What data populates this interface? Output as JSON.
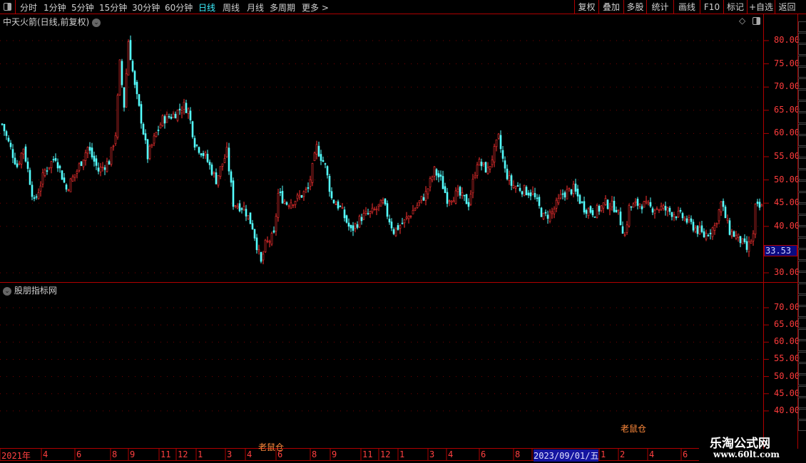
{
  "toolbar": {
    "periods": [
      "分时",
      "1分钟",
      "5分钟",
      "15分钟",
      "30分钟",
      "60分钟",
      "日线",
      "周线",
      "月线",
      "多周期",
      "更多 >"
    ],
    "active": "日线",
    "actions": [
      "复权",
      "叠加",
      "多股",
      "统计",
      "画线",
      "F10",
      "标记",
      "+自选",
      "返回"
    ]
  },
  "main_panel": {
    "title": "中天火箭(日线,前复权)",
    "current_price": "33.53"
  },
  "indicator_panel": {
    "title": "股朋指标网",
    "marks": [
      "老鼠仓",
      "老鼠仓"
    ]
  },
  "watermark": {
    "name": "乐淘公式网",
    "url": "www.60lt.com"
  },
  "colors": {
    "up": "#ff3232",
    "down": "#54ffff",
    "axis": "#ff3c3c",
    "border": "#b00000",
    "mark": "#ff8a3c",
    "highlight": "#1414a0"
  },
  "chart_data": [
    {
      "type": "candlestick",
      "title": "中天火箭(日线,前复权)",
      "y_ticks": [
        "80.00",
        "75.00",
        "70.00",
        "65.00",
        "60.00",
        "55.00",
        "50.00",
        "45.00",
        "40.00",
        "30.00"
      ],
      "ylim": [
        30,
        80
      ],
      "x_ticks": [
        "2021年",
        "4",
        "6",
        "8",
        "9",
        "11",
        "12",
        "1",
        "3",
        "4",
        "6",
        "8",
        "9",
        "11",
        "12",
        "1",
        "3",
        "4",
        "6",
        "8",
        "2023/09/01/五",
        "1",
        "2",
        "4",
        "6"
      ],
      "close_path_bar_price": [
        [
          0,
          62
        ],
        [
          3,
          58
        ],
        [
          7,
          53
        ],
        [
          10,
          57
        ],
        [
          15,
          45
        ],
        [
          20,
          52
        ],
        [
          25,
          55
        ],
        [
          30,
          48
        ],
        [
          35,
          52
        ],
        [
          40,
          57
        ],
        [
          45,
          52
        ],
        [
          50,
          54
        ],
        [
          53,
          60
        ],
        [
          55,
          75
        ],
        [
          57,
          66
        ],
        [
          59,
          80
        ],
        [
          62,
          70
        ],
        [
          65,
          63
        ],
        [
          68,
          55
        ],
        [
          72,
          60
        ],
        [
          75,
          63
        ],
        [
          80,
          64
        ],
        [
          85,
          66
        ],
        [
          87,
          65
        ],
        [
          90,
          58
        ],
        [
          95,
          55
        ],
        [
          100,
          50
        ],
        [
          105,
          56
        ],
        [
          108,
          45
        ],
        [
          113,
          44
        ],
        [
          117,
          40
        ],
        [
          121,
          32
        ],
        [
          123,
          36
        ],
        [
          127,
          38
        ],
        [
          129,
          47
        ],
        [
          133,
          45
        ],
        [
          138,
          46
        ],
        [
          143,
          48
        ],
        [
          147,
          57
        ],
        [
          151,
          53
        ],
        [
          154,
          46
        ],
        [
          158,
          44
        ],
        [
          163,
          39
        ],
        [
          168,
          42
        ],
        [
          173,
          43
        ],
        [
          178,
          45
        ],
        [
          183,
          39
        ],
        [
          188,
          41
        ],
        [
          193,
          44
        ],
        [
          198,
          47
        ],
        [
          202,
          52
        ],
        [
          205,
          50
        ],
        [
          208,
          46
        ],
        [
          213,
          47
        ],
        [
          218,
          45
        ],
        [
          222,
          54
        ],
        [
          227,
          52
        ],
        [
          232,
          59
        ],
        [
          235,
          52
        ],
        [
          238,
          49
        ],
        [
          243,
          48
        ],
        [
          248,
          47
        ],
        [
          253,
          42
        ],
        [
          257,
          43
        ],
        [
          262,
          47
        ],
        [
          267,
          48
        ],
        [
          272,
          44
        ],
        [
          277,
          43
        ],
        [
          282,
          45
        ],
        [
          287,
          44
        ],
        [
          291,
          38
        ],
        [
          293,
          44
        ],
        [
          298,
          45
        ],
        [
          303,
          44
        ],
        [
          308,
          44
        ],
        [
          313,
          43
        ],
        [
          318,
          42
        ],
        [
          323,
          40
        ],
        [
          328,
          38
        ],
        [
          333,
          40
        ],
        [
          336,
          45
        ],
        [
          340,
          39
        ],
        [
          345,
          37
        ],
        [
          348,
          35
        ],
        [
          351,
          38
        ],
        [
          352,
          44
        ],
        [
          355,
          44
        ]
      ]
    },
    {
      "type": "indicator",
      "y_ticks": [
        "70.00",
        "65.00",
        "60.00",
        "55.00",
        "50.00",
        "45.00",
        "40.00"
      ],
      "ylim": [
        40,
        70
      ]
    }
  ]
}
